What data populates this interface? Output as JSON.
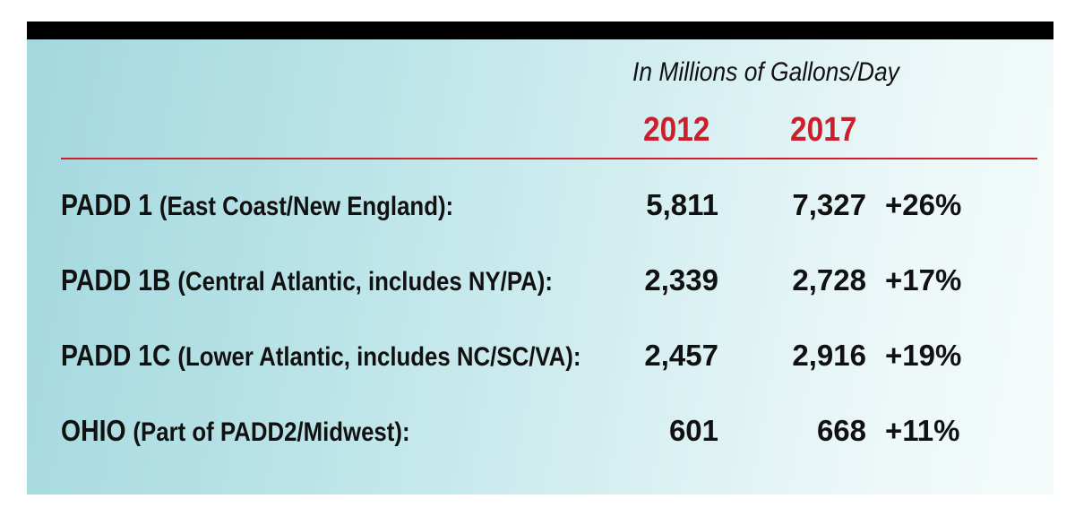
{
  "header": {
    "unit_label": "In Millions of Gallons/Day",
    "years": [
      "2012",
      "2017"
    ]
  },
  "rows": [
    {
      "code": "PADD 1",
      "desc": "(East Coast/New England):",
      "v2012": "5,811",
      "v2017": "7,327",
      "change": "+26%"
    },
    {
      "code": "PADD 1B",
      "desc": "(Central Atlantic, includes NY/PA):",
      "v2012": "2,339",
      "v2017": "2,728",
      "change": "+17%"
    },
    {
      "code": "PADD 1C",
      "desc": "(Lower Atlantic, includes NC/SC/VA):",
      "v2012": "2,457",
      "v2017": "2,916",
      "change": "+19%"
    },
    {
      "code": "OHIO",
      "desc": "(Part of PADD2/Midwest):",
      "v2012": "601",
      "v2017": "668",
      "change": "+11%"
    }
  ],
  "colors": {
    "accent": "#cc1f2d",
    "text": "#111111",
    "bar": "#000000",
    "panel": "#b9e3e7"
  },
  "chart_data": {
    "type": "table",
    "columns": [
      "2012",
      "2017",
      ""
    ],
    "rows": [
      {
        "label": "PADD 1 (East Coast/New England):",
        "values": [
          5811,
          7327
        ],
        "change": "+26%"
      },
      {
        "label": "PADD 1B (Central Atlantic, includes NY/PA):",
        "values": [
          2339,
          2728
        ],
        "change": "+17%"
      },
      {
        "label": "PADD 1C (Lower Atlantic, includes NC/SC/VA):",
        "values": [
          2457,
          2916
        ],
        "change": "+19%"
      },
      {
        "label": "OHIO (Part of PADD2/Midwest):",
        "values": [
          601,
          668
        ],
        "change": "+11%"
      }
    ],
    "unit": "In Millions of Gallons/Day"
  }
}
